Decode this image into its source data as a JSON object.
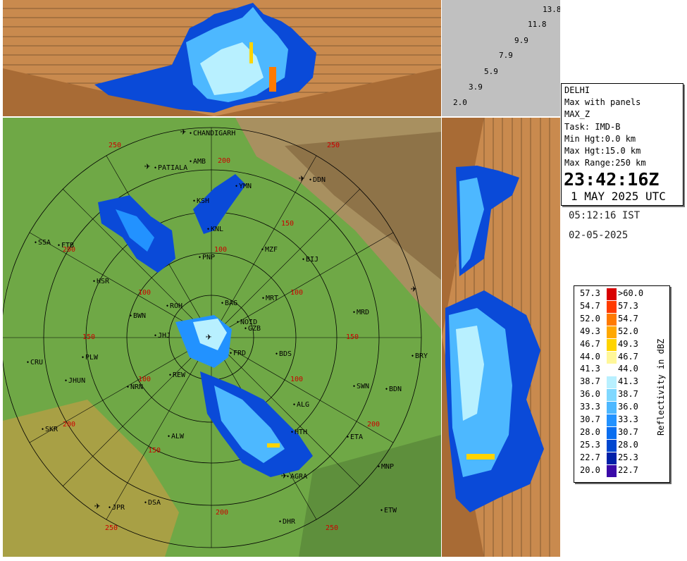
{
  "info": {
    "station": "DELHI",
    "product": "Max with panels",
    "field": "MAX_Z",
    "task": "Task: IMD-B",
    "min_hgt": "Min Hgt:0.0 km",
    "max_hgt": "Max Hgt:15.0 km",
    "max_range": "Max Range:250 km",
    "time_z": "23:42:16Z",
    "date_utc": "1 MAY 2025 UTC",
    "time_ist": "05:12:16 IST",
    "date_local": "02-05-2025"
  },
  "height_labels": [
    "13.8",
    "11.8",
    "9.9",
    "7.9",
    "5.9",
    "3.9",
    "2.0"
  ],
  "legend": {
    "unit": "Reflectivity in dBZ",
    "rows": [
      {
        "lo": "57.3",
        "hi": ">60.0",
        "color": "#d80000"
      },
      {
        "lo": "54.7",
        "hi": "57.3",
        "color": "#ff3b00"
      },
      {
        "lo": "52.0",
        "hi": "54.7",
        "color": "#ff7a00"
      },
      {
        "lo": "49.3",
        "hi": "52.0",
        "color": "#ffa800"
      },
      {
        "lo": "46.7",
        "hi": "49.3",
        "color": "#ffd400"
      },
      {
        "lo": "44.0",
        "hi": "46.7",
        "color": "#fff799"
      },
      {
        "lo": "41.3",
        "hi": "44.0",
        "color": "#ffffff"
      },
      {
        "lo": "38.7",
        "hi": "41.3",
        "color": "#b8f0ff"
      },
      {
        "lo": "36.0",
        "hi": "38.7",
        "color": "#7fd8ff"
      },
      {
        "lo": "33.3",
        "hi": "36.0",
        "color": "#4db8ff"
      },
      {
        "lo": "30.7",
        "hi": "33.3",
        "color": "#2292ff"
      },
      {
        "lo": "28.0",
        "hi": "30.7",
        "color": "#0a6ef0"
      },
      {
        "lo": "25.3",
        "hi": "28.0",
        "color": "#0047d0"
      },
      {
        "lo": "22.7",
        "hi": "25.3",
        "color": "#0020a8"
      },
      {
        "lo": "20.0",
        "hi": "22.7",
        "color": "#3a0aa8"
      }
    ]
  },
  "places": [
    {
      "name": "CHANDIGARH"
    },
    {
      "name": "PATIALA"
    },
    {
      "name": "AMB"
    },
    {
      "name": "DDN"
    },
    {
      "name": "KSH"
    },
    {
      "name": "YMN"
    },
    {
      "name": "KNL"
    },
    {
      "name": "SSA"
    },
    {
      "name": "FTB"
    },
    {
      "name": "MZF"
    },
    {
      "name": "BIJ"
    },
    {
      "name": "PNP"
    },
    {
      "name": "HSR"
    },
    {
      "name": "MRT"
    },
    {
      "name": "BAG"
    },
    {
      "name": "ROH"
    },
    {
      "name": "BWN"
    },
    {
      "name": "NOID"
    },
    {
      "name": "GZB"
    },
    {
      "name": "MRD"
    },
    {
      "name": "JHJ"
    },
    {
      "name": "FRD"
    },
    {
      "name": "BDS"
    },
    {
      "name": "BRY"
    },
    {
      "name": "CRU"
    },
    {
      "name": "PLW"
    },
    {
      "name": "JHUN"
    },
    {
      "name": "REW"
    },
    {
      "name": "NRN"
    },
    {
      "name": "SWN"
    },
    {
      "name": "BDN"
    },
    {
      "name": "ALG"
    },
    {
      "name": "SKR"
    },
    {
      "name": "HTH"
    },
    {
      "name": "ETA"
    },
    {
      "name": "ALW"
    },
    {
      "name": "MNP"
    },
    {
      "name": "AGRA"
    },
    {
      "name": "JPR"
    },
    {
      "name": "DSA"
    },
    {
      "name": "ETW"
    },
    {
      "name": "DHR"
    }
  ],
  "range_labels": [
    "250",
    "200",
    "150",
    "100",
    "50"
  ]
}
